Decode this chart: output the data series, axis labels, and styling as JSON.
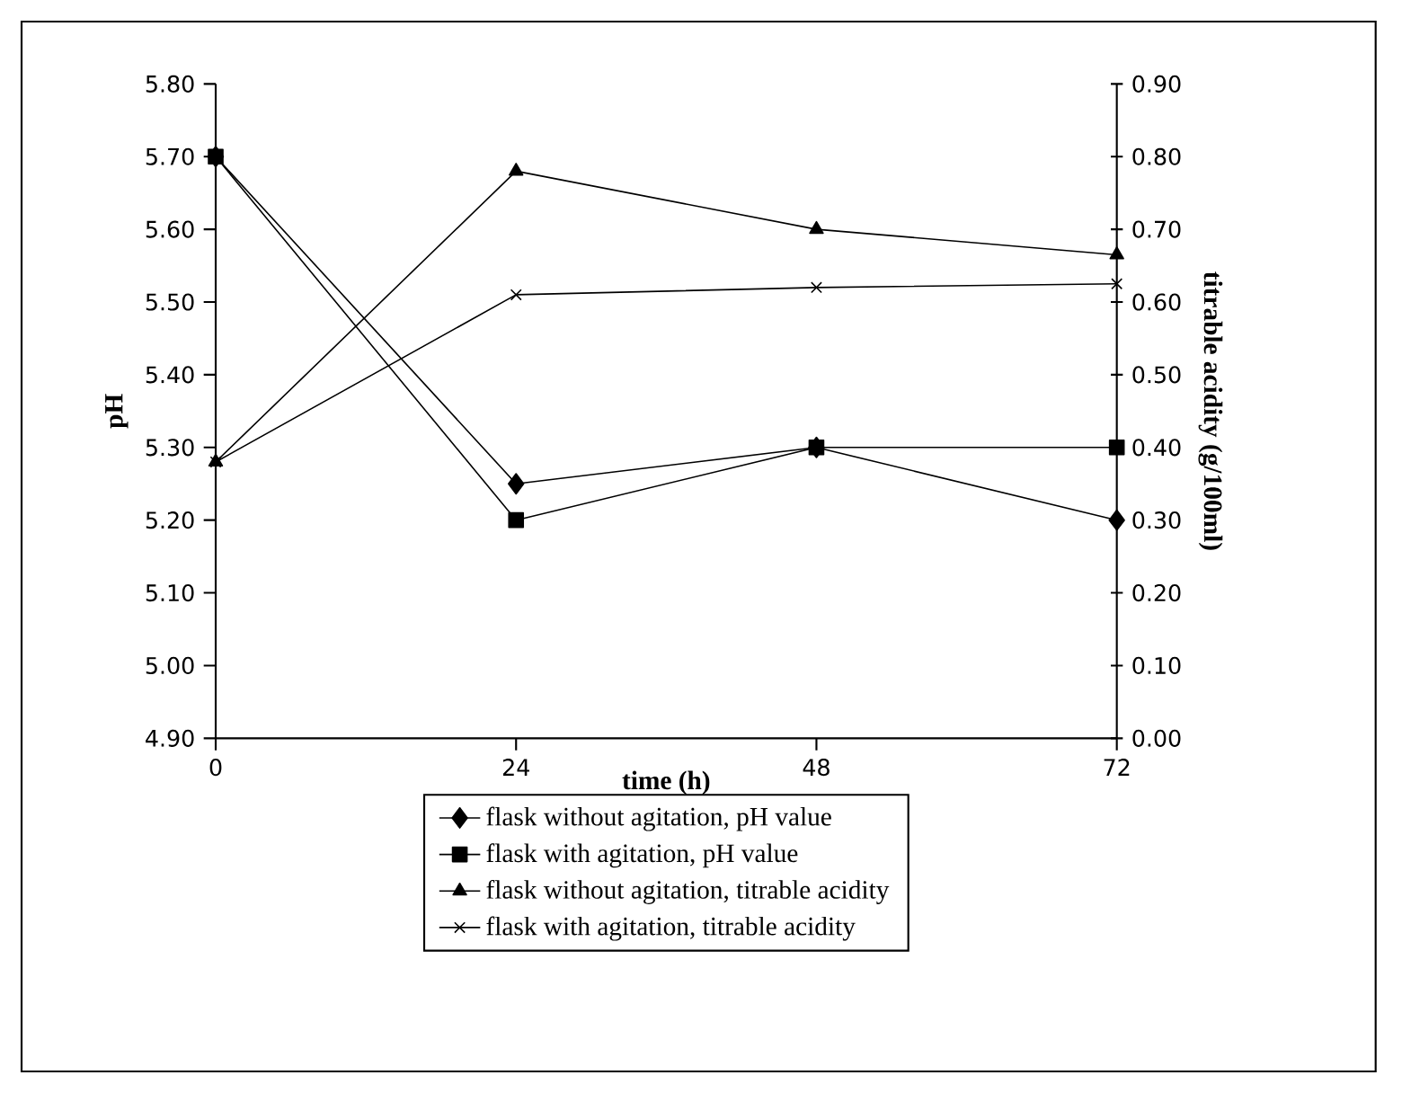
{
  "chart_data": {
    "type": "line",
    "xlabel": "time (h)",
    "ylabel": "pH",
    "y2label": "titrable acidity (g/100ml)",
    "x": [
      0,
      24,
      48,
      72
    ],
    "series": [
      {
        "name": "flask without agitation, pH value",
        "color": "#000000",
        "marker": "diamond",
        "values": [
          5.7,
          5.25,
          5.3,
          5.2
        ]
      },
      {
        "name": "flask with agitation, pH value",
        "color": "#000000",
        "marker": "square",
        "values": [
          5.7,
          5.2,
          5.3,
          5.3
        ]
      },
      {
        "name": "flask without agitation, titrable acidity",
        "color": "#000000",
        "marker": "triangle",
        "axis": "y2",
        "values": [
          0.38,
          0.78,
          0.7,
          0.665
        ]
      },
      {
        "name": "flask with agitation, titrable acidity",
        "color": "#000000",
        "marker": "cross",
        "axis": "y2",
        "values": [
          0.38,
          0.61,
          0.62,
          0.625
        ]
      }
    ],
    "xlim": [
      0,
      72
    ],
    "xticks": [
      0,
      24,
      48,
      72
    ],
    "ylim": [
      4.9,
      5.8
    ],
    "yticks": [
      {
        "value": 4.9,
        "label": "4.90"
      },
      {
        "value": 5.0,
        "label": "5.00"
      },
      {
        "value": 5.1,
        "label": "5.10"
      },
      {
        "value": 5.2,
        "label": "5.20"
      },
      {
        "value": 5.3,
        "label": "5.30"
      },
      {
        "value": 5.4,
        "label": "5.40"
      },
      {
        "value": 5.5,
        "label": "5.50"
      },
      {
        "value": 5.6,
        "label": "5.60"
      },
      {
        "value": 5.7,
        "label": "5.70"
      },
      {
        "value": 5.8,
        "label": "5.80"
      }
    ],
    "y2lim": [
      0,
      0.9
    ],
    "y2ticks": [
      {
        "value": 0,
        "label": "0.00"
      },
      {
        "value": 0.1,
        "label": "0.10"
      },
      {
        "value": 0.2,
        "label": "0.20"
      },
      {
        "value": 0.3,
        "label": "0.30"
      },
      {
        "value": 0.4,
        "label": "0.40"
      },
      {
        "value": 0.5,
        "label": "0.50"
      },
      {
        "value": 0.6,
        "label": "0.60"
      },
      {
        "value": 0.7,
        "label": "0.70"
      },
      {
        "value": 0.8,
        "label": "0.80"
      },
      {
        "value": 0.9,
        "label": "0.90"
      }
    ],
    "legend": "bottom",
    "grid": false,
    "line_style": "solid"
  }
}
